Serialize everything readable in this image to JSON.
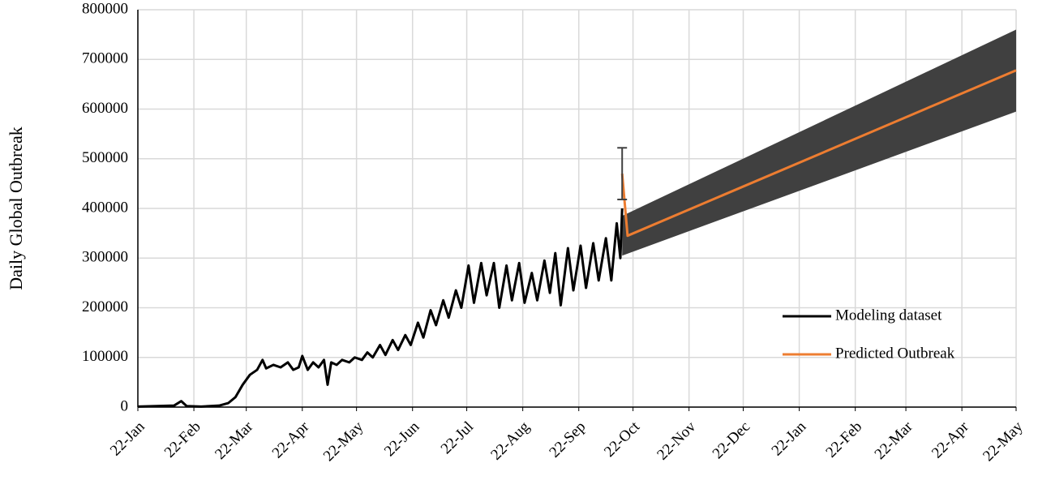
{
  "chart_data": {
    "type": "line",
    "y_label": "Daily Global Outbreak",
    "xlim": [
      0,
      486
    ],
    "xticks": [
      {
        "value": 0,
        "label": "22-Jan"
      },
      {
        "value": 31,
        "label": "22-Feb"
      },
      {
        "value": 60,
        "label": "22-Mar"
      },
      {
        "value": 91,
        "label": "22-Apr"
      },
      {
        "value": 121,
        "label": "22-May"
      },
      {
        "value": 152,
        "label": "22-Jun"
      },
      {
        "value": 182,
        "label": "22-Jul"
      },
      {
        "value": 213,
        "label": "22-Aug"
      },
      {
        "value": 244,
        "label": "22-Sep"
      },
      {
        "value": 274,
        "label": "22-Oct"
      },
      {
        "value": 305,
        "label": "22-Nov"
      },
      {
        "value": 335,
        "label": "22-Dec"
      },
      {
        "value": 366,
        "label": "22-Jan"
      },
      {
        "value": 397,
        "label": "22-Feb"
      },
      {
        "value": 425,
        "label": "22-Mar"
      },
      {
        "value": 456,
        "label": "22-Apr"
      },
      {
        "value": 486,
        "label": "22-May"
      }
    ],
    "ylim": [
      0,
      800000
    ],
    "yticks": [
      0,
      100000,
      200000,
      300000,
      400000,
      500000,
      600000,
      700000,
      800000
    ],
    "grid": true,
    "legend": "lower right",
    "band": {
      "color": "#404040",
      "x": [
        268,
        486
      ],
      "lower": [
        305000,
        595000
      ],
      "upper": [
        385000,
        760000
      ]
    },
    "error_bar": {
      "x": 268,
      "value": 470000,
      "error": 52000,
      "color": "#404040"
    },
    "series": [
      {
        "name": "Modeling dataset",
        "color": "#000000",
        "x": [
          0,
          10,
          20,
          24,
          27,
          35,
          45,
          50,
          54,
          58,
          62,
          66,
          69,
          71,
          75,
          79,
          83,
          86,
          89,
          91,
          94,
          97,
          100,
          103,
          105,
          107,
          110,
          113,
          117,
          120,
          124,
          127,
          130,
          134,
          137,
          141,
          144,
          148,
          151,
          155,
          158,
          162,
          165,
          169,
          172,
          176,
          179,
          183,
          186,
          190,
          193,
          197,
          200,
          204,
          207,
          211,
          214,
          218,
          221,
          225,
          228,
          231,
          234,
          238,
          241,
          245,
          248,
          252,
          255,
          259,
          262,
          265,
          267,
          268
        ],
        "values": [
          1000,
          2000,
          3000,
          12000,
          2000,
          1000,
          3000,
          8000,
          20000,
          45000,
          65000,
          75000,
          95000,
          78000,
          85000,
          80000,
          90000,
          75000,
          80000,
          103000,
          75000,
          90000,
          80000,
          95000,
          45000,
          90000,
          85000,
          95000,
          90000,
          100000,
          95000,
          110000,
          100000,
          125000,
          105000,
          135000,
          115000,
          145000,
          125000,
          170000,
          140000,
          195000,
          165000,
          215000,
          180000,
          235000,
          200000,
          285000,
          210000,
          290000,
          225000,
          290000,
          200000,
          285000,
          215000,
          290000,
          210000,
          270000,
          215000,
          295000,
          230000,
          310000,
          205000,
          320000,
          235000,
          325000,
          240000,
          330000,
          255000,
          340000,
          255000,
          370000,
          300000,
          400000
        ]
      },
      {
        "name": "Predicted Outbreak",
        "color": "#ed7d31",
        "x": [
          268,
          271,
          486
        ],
        "values": [
          470000,
          345000,
          678000
        ]
      }
    ]
  }
}
